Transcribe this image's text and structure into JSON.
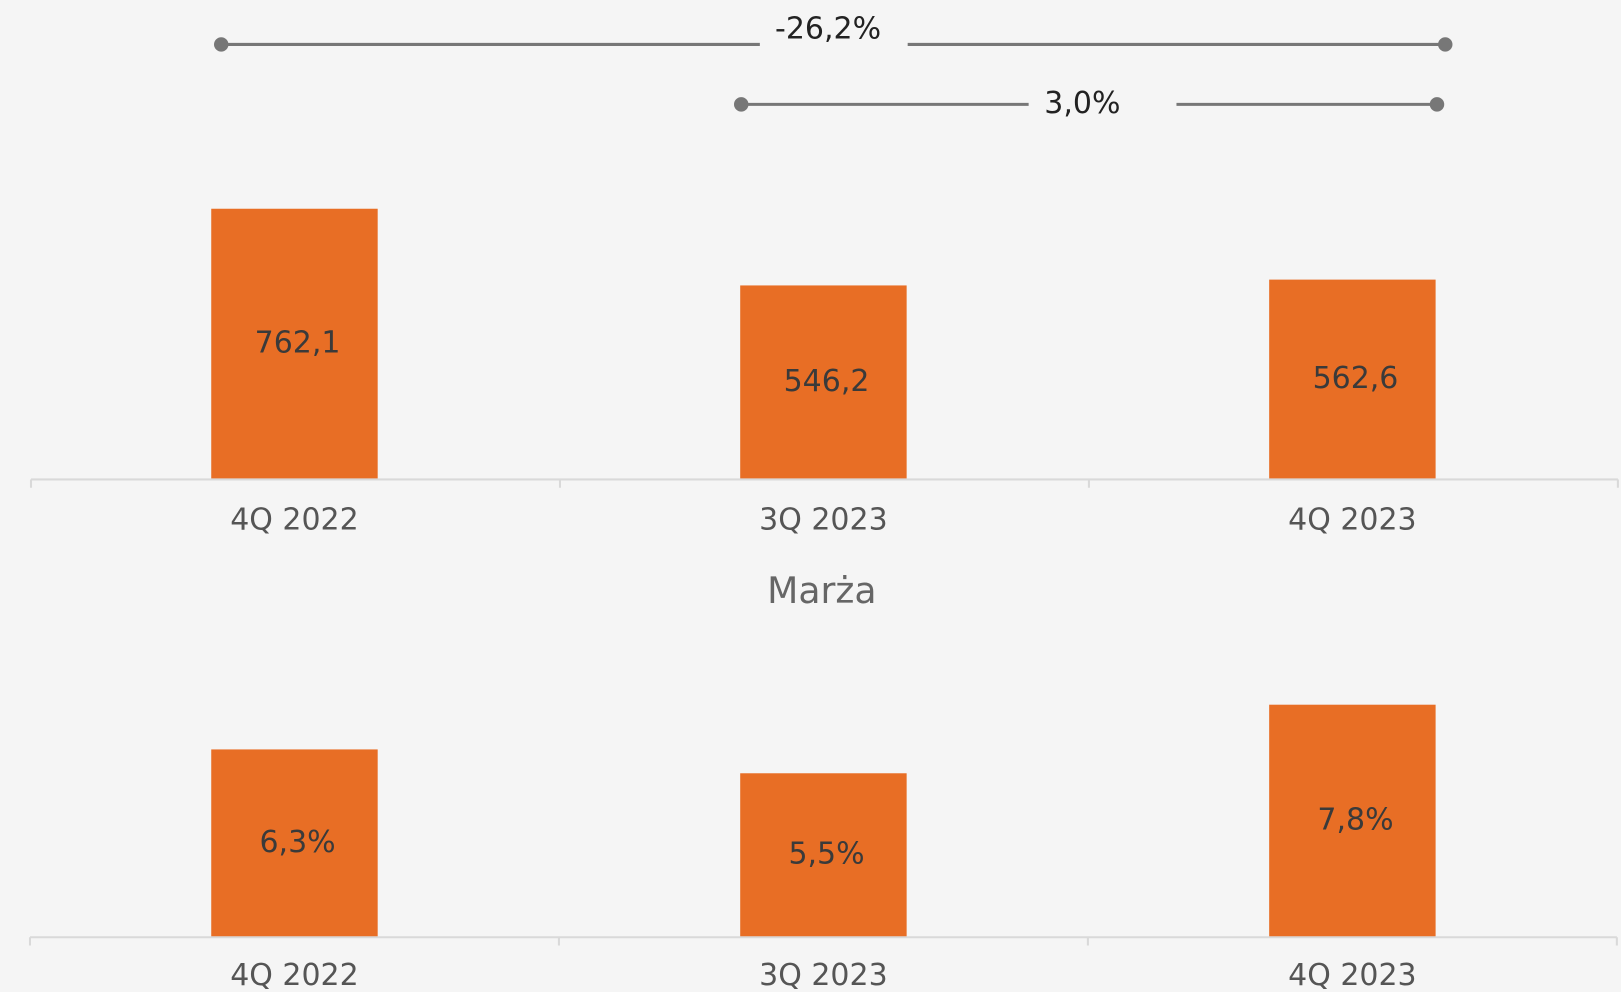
{
  "chart_data": [
    {
      "type": "bar",
      "categories": [
        "4Q 2022",
        "3Q 2023",
        "4Q 2023"
      ],
      "values": [
        762.1,
        546.2,
        562.6
      ],
      "value_labels": [
        "762,1",
        "546,2",
        "562,6"
      ],
      "color": "#e86e25",
      "ylim": [
        0,
        900
      ],
      "annotations": [
        "-26,2%",
        "3,0%"
      ]
    },
    {
      "type": "bar",
      "title": "Marża",
      "categories": [
        "4Q 2022",
        "3Q 2023",
        "4Q 2023"
      ],
      "values": [
        6.3,
        5.5,
        7.8
      ],
      "value_labels": [
        "6,3%",
        "5,5%",
        "7,8%"
      ],
      "color": "#e86e25",
      "ylim": [
        0,
        8
      ]
    }
  ]
}
